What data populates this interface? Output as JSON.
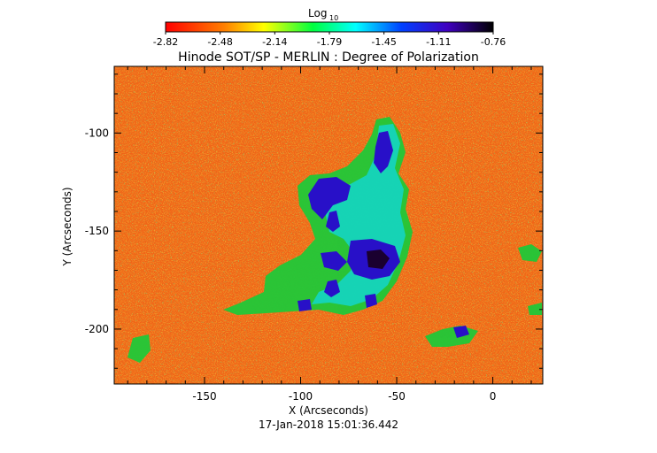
{
  "chart_data": {
    "type": "heatmap",
    "title": "Hinode SOT/SP - MERLIN : Degree of Polarization",
    "colorbar": {
      "label_main": "Log",
      "label_sub": "10",
      "ticks": [
        "-2.82",
        "-2.48",
        "-2.14",
        "-1.79",
        "-1.45",
        "-1.11",
        "-0.76"
      ],
      "range": [
        -2.82,
        -0.76
      ],
      "colormap": "rainbow (red → yellow → green → cyan → blue → black)"
    },
    "xlabel": "X (Arcseconds)",
    "ylabel": "Y (Arcseconds)",
    "x_ticks": [
      "-150",
      "-100",
      "-50",
      "0"
    ],
    "y_ticks": [
      "-100",
      "-150",
      "-200"
    ],
    "xlim": [
      -197,
      26
    ],
    "ylim": [
      -228,
      -66
    ],
    "timestamp": "17-Jan-2018 15:01:36.442",
    "colors": {
      "background_field": "#f06418",
      "speckle_yellow": "#e8d010",
      "network_green": "#20c030",
      "plage_blue": "#2010c8",
      "core_black": "#1a0030"
    }
  }
}
